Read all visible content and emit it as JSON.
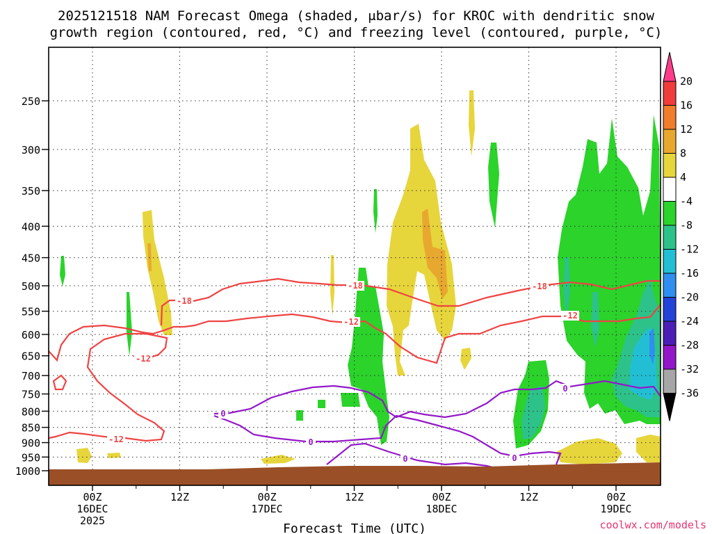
{
  "chart_data": {
    "type": "time-height contour",
    "title": {
      "line1": "2025121518 NAM Forecast Omega (shaded, μbar/s) for KROC with dendritic snow",
      "line2": "growth region (contoured, red, °C) and freezing level (contoured, purple, °C)"
    },
    "xlabel": "Forecast Time (UTC)",
    "ylabel": "",
    "yaxis": {
      "unit": "hPa",
      "scale": "log",
      "range": [
        1000,
        200
      ],
      "ticks": [
        "250",
        "300",
        "350",
        "400",
        "450",
        "500",
        "550",
        "600",
        "650",
        "700",
        "750",
        "800",
        "850",
        "900",
        "950",
        "1000"
      ]
    },
    "xaxis": {
      "ticks": [
        {
          "label": "00Z",
          "sub1": "16DEC",
          "sub2": "2025"
        },
        {
          "label": "12Z",
          "sub1": "",
          "sub2": ""
        },
        {
          "label": "00Z",
          "sub1": "17DEC",
          "sub2": ""
        },
        {
          "label": "12Z",
          "sub1": "",
          "sub2": ""
        },
        {
          "label": "00Z",
          "sub1": "18DEC",
          "sub2": ""
        },
        {
          "label": "12Z",
          "sub1": "",
          "sub2": ""
        },
        {
          "label": "00Z",
          "sub1": "19DEC",
          "sub2": ""
        }
      ]
    },
    "colorbar": {
      "labels": [
        "20",
        "16",
        "12",
        "8",
        "4",
        "-4",
        "-8",
        "-12",
        "-16",
        "-20",
        "-24",
        "-28",
        "-32",
        "-36"
      ],
      "colors": [
        "#ff3c8a",
        "#f03c3c",
        "#ef7d2c",
        "#e8a82f",
        "#e7d53c",
        "#ffffff",
        "#2bd32b",
        "#2dc289",
        "#22bfd4",
        "#2f8ef0",
        "#2342d8",
        "#4b1fb6",
        "#9316c9",
        "#a6a6a6",
        "#000000"
      ]
    },
    "contours": [
      {
        "name": "dgz-minus-18",
        "color": "#ef4343",
        "level": -18,
        "label": "-18"
      },
      {
        "name": "dgz-minus-12",
        "color": "#ef4343",
        "level": -12,
        "label": "-12"
      },
      {
        "name": "freezing-level",
        "color": "#9318c8",
        "level": 0,
        "label": "0"
      }
    ],
    "shading": {
      "yellow_color": "#e7d53c",
      "orange_color": "#e8a82f",
      "green_color": "#2bd32b",
      "teal_color": "#2dc289",
      "cyan_color": "#22bfd4",
      "blue_color": "#2f8ef0"
    },
    "ground_color": "#9b4f27"
  },
  "credit": "coolwx.com/models"
}
